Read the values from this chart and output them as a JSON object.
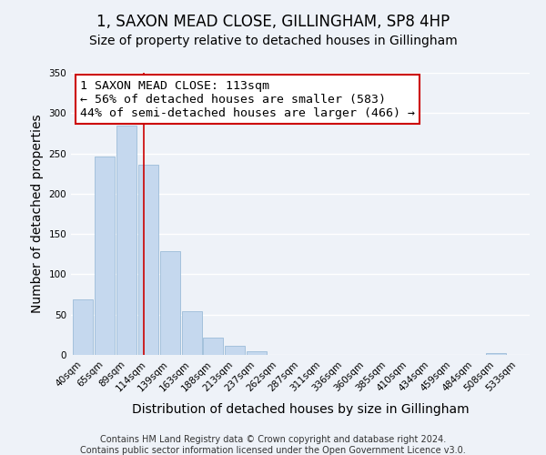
{
  "title": "1, SAXON MEAD CLOSE, GILLINGHAM, SP8 4HP",
  "subtitle": "Size of property relative to detached houses in Gillingham",
  "xlabel": "Distribution of detached houses by size in Gillingham",
  "ylabel": "Number of detached properties",
  "bar_labels": [
    "40sqm",
    "65sqm",
    "89sqm",
    "114sqm",
    "139sqm",
    "163sqm",
    "188sqm",
    "213sqm",
    "237sqm",
    "262sqm",
    "287sqm",
    "311sqm",
    "336sqm",
    "360sqm",
    "385sqm",
    "410sqm",
    "434sqm",
    "459sqm",
    "484sqm",
    "508sqm",
    "533sqm"
  ],
  "bar_values": [
    69,
    246,
    284,
    236,
    129,
    54,
    22,
    11,
    4,
    0,
    0,
    0,
    0,
    0,
    0,
    0,
    0,
    0,
    0,
    2,
    0
  ],
  "bar_color": "#c5d8ee",
  "bar_edge_color": "#9bbcd8",
  "vline_x_idx": 2.78,
  "vline_color": "#cc0000",
  "ylim": [
    0,
    350
  ],
  "yticks": [
    0,
    50,
    100,
    150,
    200,
    250,
    300,
    350
  ],
  "annotation_title": "1 SAXON MEAD CLOSE: 113sqm",
  "annotation_line1": "← 56% of detached houses are smaller (583)",
  "annotation_line2": "44% of semi-detached houses are larger (466) →",
  "annotation_box_facecolor": "#ffffff",
  "annotation_box_edgecolor": "#cc0000",
  "footer_line1": "Contains HM Land Registry data © Crown copyright and database right 2024.",
  "footer_line2": "Contains public sector information licensed under the Open Government Licence v3.0.",
  "bg_color": "#eef2f8",
  "grid_color": "#ffffff",
  "title_fontsize": 12,
  "subtitle_fontsize": 10,
  "axis_label_fontsize": 10,
  "tick_fontsize": 7.5,
  "annotation_fontsize": 9.5,
  "footer_fontsize": 7
}
